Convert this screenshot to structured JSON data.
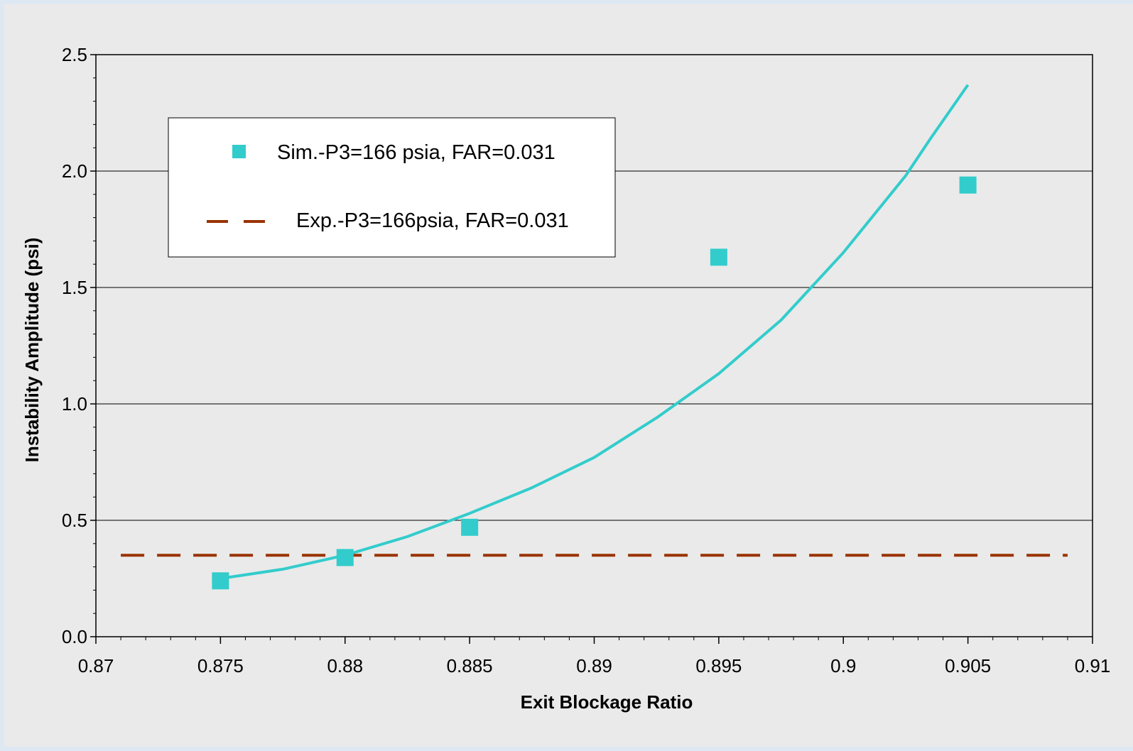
{
  "chart_data": {
    "type": "scatter",
    "xlabel": "Exit Blockage Ratio",
    "ylabel": "Instability Amplitude (psi)",
    "xlim": [
      0.87,
      0.91
    ],
    "ylim": [
      0,
      2.5
    ],
    "x_ticks": [
      "0.87",
      "0.875",
      "0.88",
      "0.885",
      "0.89",
      "0.895",
      "0.9",
      "0.905",
      "0.91"
    ],
    "y_ticks": [
      "0.0",
      "0.5",
      "1.0",
      "1.5",
      "2.0",
      "2.5"
    ],
    "grid": "horizontal",
    "legend_position": "top-left",
    "series": [
      {
        "name": "Sim.-P3=166 psia, FAR=0.031",
        "kind": "scatter",
        "marker": "square",
        "color": "#33cccc",
        "x": [
          0.875,
          0.88,
          0.885,
          0.895,
          0.905
        ],
        "y": [
          0.24,
          0.34,
          0.47,
          1.63,
          1.94
        ]
      },
      {
        "name": "Exp.-P3=166psia, FAR=0.031",
        "kind": "line",
        "style": "dashed",
        "color": "#993300",
        "x": [
          0.871,
          0.909
        ],
        "y": [
          0.35,
          0.35
        ]
      },
      {
        "kind": "line",
        "style": "solid",
        "color": "#33cccc",
        "x": [
          0.875,
          0.8775,
          0.88,
          0.8825,
          0.885,
          0.8875,
          0.89,
          0.8925,
          0.895,
          0.8975,
          0.9,
          0.9025,
          0.9035,
          0.905
        ],
        "y": [
          0.25,
          0.29,
          0.35,
          0.43,
          0.53,
          0.64,
          0.77,
          0.94,
          1.13,
          1.36,
          1.65,
          1.98,
          2.14,
          2.37
        ]
      }
    ]
  }
}
